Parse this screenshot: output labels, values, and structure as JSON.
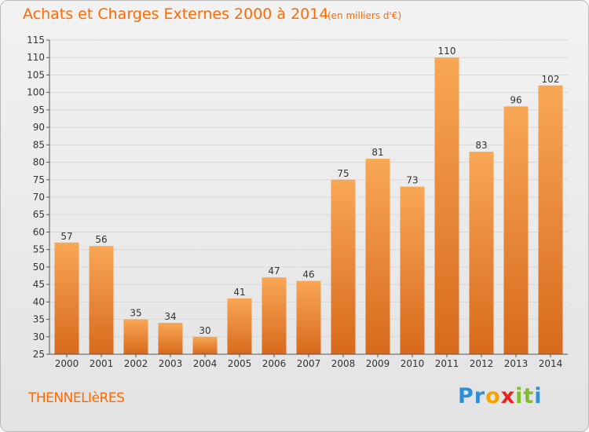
{
  "header": {
    "title": "Achats et Charges Externes 2000 à 2014",
    "subtitle": "(en milliers d'€)"
  },
  "footer": {
    "commune": "THENNELIèRES",
    "logo_letters": [
      {
        "ch": "P",
        "color": "#2e8fd6"
      },
      {
        "ch": "r",
        "color": "#2e8fd6"
      },
      {
        "ch": "o",
        "color": "#f2a300"
      },
      {
        "ch": "x",
        "color": "#e8231e"
      },
      {
        "ch": "i",
        "color": "#7cbf2a"
      },
      {
        "ch": "t",
        "color": "#7cbf2a"
      },
      {
        "ch": "i",
        "color": "#2e8fd6"
      }
    ]
  },
  "colors": {
    "accent": "#ff6a00",
    "bar_top": "#f8a755",
    "bar_bottom": "#d8691c",
    "grid": "#d8d8d8"
  },
  "chart_data": {
    "type": "bar",
    "title": "Achats et Charges Externes 2000 à 2014",
    "subtitle": "(en milliers d'€)",
    "xlabel": "",
    "ylabel": "",
    "categories": [
      "2000",
      "2001",
      "2002",
      "2003",
      "2004",
      "2005",
      "2006",
      "2007",
      "2008",
      "2009",
      "2010",
      "2011",
      "2012",
      "2013",
      "2014"
    ],
    "values": [
      57,
      56,
      35,
      34,
      30,
      41,
      47,
      46,
      75,
      81,
      73,
      110,
      83,
      96,
      102
    ],
    "ylim": [
      25,
      115
    ],
    "yticks": [
      25,
      30,
      35,
      40,
      45,
      50,
      55,
      60,
      65,
      70,
      75,
      80,
      85,
      90,
      95,
      100,
      105,
      110,
      115
    ],
    "grid": true
  }
}
